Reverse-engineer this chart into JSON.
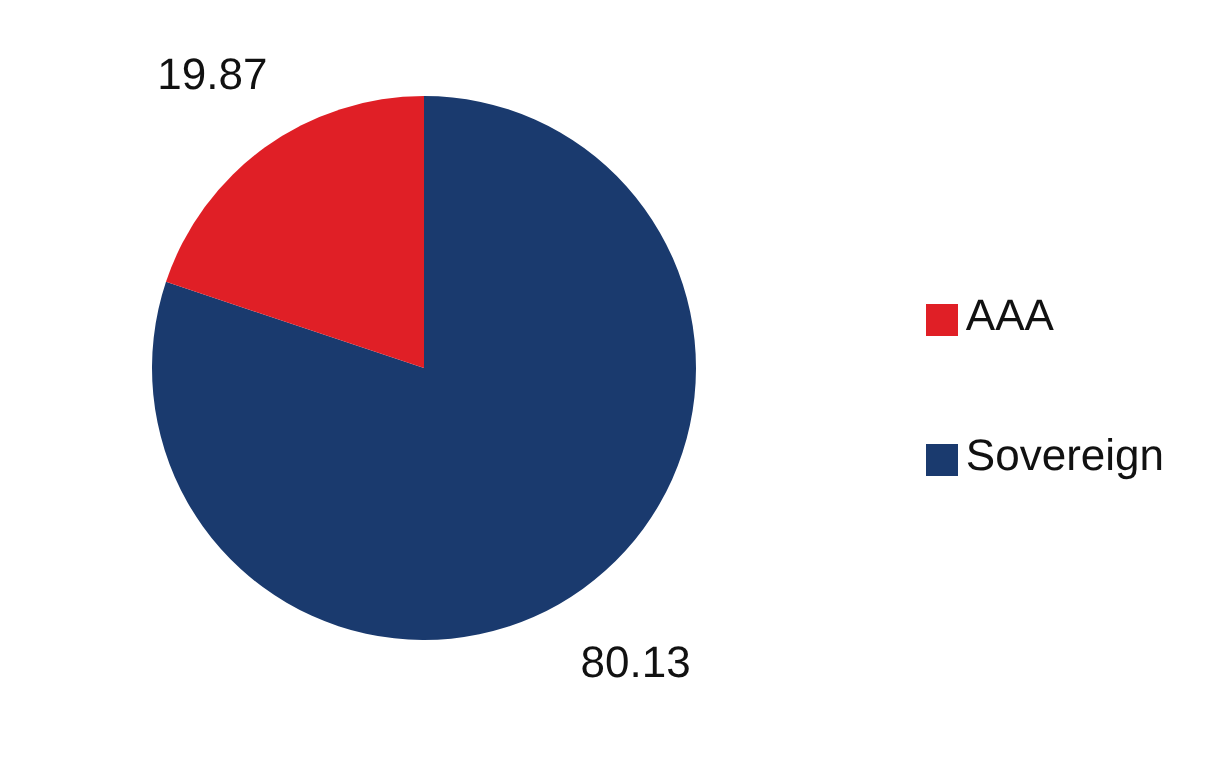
{
  "chart_data": {
    "type": "pie",
    "categories": [
      "Sovereign",
      "AAA"
    ],
    "values": [
      80.13,
      19.87
    ],
    "colors": [
      "#1a3a6e",
      "#e01f26"
    ],
    "data_labels": true,
    "legend": "right"
  }
}
